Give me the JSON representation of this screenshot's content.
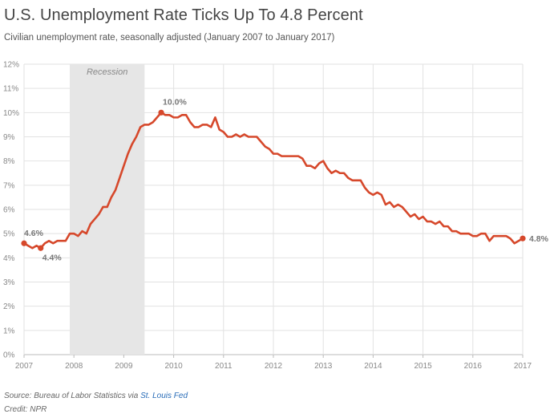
{
  "header": {
    "title": "U.S. Unemployment Rate Ticks Up To 4.8 Percent",
    "subtitle": "Civilian unemployment rate, seasonally adjusted (January 2007 to January 2017)"
  },
  "footer": {
    "source_prefix": "Source: Bureau of Labor Statistics via ",
    "source_link": "St. Louis Fed",
    "credit": "Credit: NPR"
  },
  "colors": {
    "line": "#d6482b",
    "recession_band": "#e6e6e6",
    "grid": "#e2e2e2",
    "axis_text": "#888888",
    "annotation_text": "#777777"
  },
  "chart_data": {
    "type": "line",
    "xlim": [
      2007,
      2017
    ],
    "ylim": [
      0,
      12
    ],
    "yticks": [
      "0%",
      "1%",
      "2%",
      "3%",
      "4%",
      "5%",
      "6%",
      "7%",
      "8%",
      "9%",
      "10%",
      "11%",
      "12%"
    ],
    "xticks": [
      "2007",
      "2008",
      "2009",
      "2010",
      "2011",
      "2012",
      "2013",
      "2014",
      "2015",
      "2016",
      "2017"
    ],
    "grid": true,
    "recession": {
      "label": "Recession",
      "start": "2007-12",
      "end": "2009-06"
    },
    "series": [
      {
        "x": [
          "2007-01",
          "2007-02",
          "2007-03",
          "2007-04",
          "2007-05",
          "2007-06",
          "2007-07",
          "2007-08",
          "2007-09",
          "2007-10",
          "2007-11",
          "2007-12",
          "2008-01",
          "2008-02",
          "2008-03",
          "2008-04",
          "2008-05",
          "2008-06",
          "2008-07",
          "2008-08",
          "2008-09",
          "2008-10",
          "2008-11",
          "2008-12",
          "2009-01",
          "2009-02",
          "2009-03",
          "2009-04",
          "2009-05",
          "2009-06",
          "2009-07",
          "2009-08",
          "2009-09",
          "2009-10",
          "2009-11",
          "2009-12",
          "2010-01",
          "2010-02",
          "2010-03",
          "2010-04",
          "2010-05",
          "2010-06",
          "2010-07",
          "2010-08",
          "2010-09",
          "2010-10",
          "2010-11",
          "2010-12",
          "2011-01",
          "2011-02",
          "2011-03",
          "2011-04",
          "2011-05",
          "2011-06",
          "2011-07",
          "2011-08",
          "2011-09",
          "2011-10",
          "2011-11",
          "2011-12",
          "2012-01",
          "2012-02",
          "2012-03",
          "2012-04",
          "2012-05",
          "2012-06",
          "2012-07",
          "2012-08",
          "2012-09",
          "2012-10",
          "2012-11",
          "2012-12",
          "2013-01",
          "2013-02",
          "2013-03",
          "2013-04",
          "2013-05",
          "2013-06",
          "2013-07",
          "2013-08",
          "2013-09",
          "2013-10",
          "2013-11",
          "2013-12",
          "2014-01",
          "2014-02",
          "2014-03",
          "2014-04",
          "2014-05",
          "2014-06",
          "2014-07",
          "2014-08",
          "2014-09",
          "2014-10",
          "2014-11",
          "2014-12",
          "2015-01",
          "2015-02",
          "2015-03",
          "2015-04",
          "2015-05",
          "2015-06",
          "2015-07",
          "2015-08",
          "2015-09",
          "2015-10",
          "2015-11",
          "2015-12",
          "2016-01",
          "2016-02",
          "2016-03",
          "2016-04",
          "2016-05",
          "2016-06",
          "2016-07",
          "2016-08",
          "2016-09",
          "2016-10",
          "2016-11",
          "2016-12",
          "2017-01"
        ],
        "values": [
          4.6,
          4.5,
          4.4,
          4.5,
          4.4,
          4.6,
          4.7,
          4.6,
          4.7,
          4.7,
          4.7,
          5.0,
          5.0,
          4.9,
          5.1,
          5.0,
          5.4,
          5.6,
          5.8,
          6.1,
          6.1,
          6.5,
          6.8,
          7.3,
          7.8,
          8.3,
          8.7,
          9.0,
          9.4,
          9.5,
          9.5,
          9.6,
          9.8,
          10.0,
          9.9,
          9.9,
          9.8,
          9.8,
          9.9,
          9.9,
          9.6,
          9.4,
          9.4,
          9.5,
          9.5,
          9.4,
          9.8,
          9.3,
          9.2,
          9.0,
          9.0,
          9.1,
          9.0,
          9.1,
          9.0,
          9.0,
          9.0,
          8.8,
          8.6,
          8.5,
          8.3,
          8.3,
          8.2,
          8.2,
          8.2,
          8.2,
          8.2,
          8.1,
          7.8,
          7.8,
          7.7,
          7.9,
          8.0,
          7.7,
          7.5,
          7.6,
          7.5,
          7.5,
          7.3,
          7.2,
          7.2,
          7.2,
          6.9,
          6.7,
          6.6,
          6.7,
          6.6,
          6.2,
          6.3,
          6.1,
          6.2,
          6.1,
          5.9,
          5.7,
          5.8,
          5.6,
          5.7,
          5.5,
          5.5,
          5.4,
          5.5,
          5.3,
          5.3,
          5.1,
          5.1,
          5.0,
          5.0,
          5.0,
          4.9,
          4.9,
          5.0,
          5.0,
          4.7,
          4.9,
          4.9,
          4.9,
          4.9,
          4.8,
          4.6,
          4.7,
          4.8
        ]
      }
    ],
    "annotations": [
      {
        "x": "2007-01",
        "y": 4.6,
        "label": "4.6%"
      },
      {
        "x": "2007-05",
        "y": 4.4,
        "label": "4.4%"
      },
      {
        "x": "2009-10",
        "y": 10.0,
        "label": "10.0%"
      },
      {
        "x": "2017-01",
        "y": 4.8,
        "label": "4.8%"
      }
    ]
  }
}
